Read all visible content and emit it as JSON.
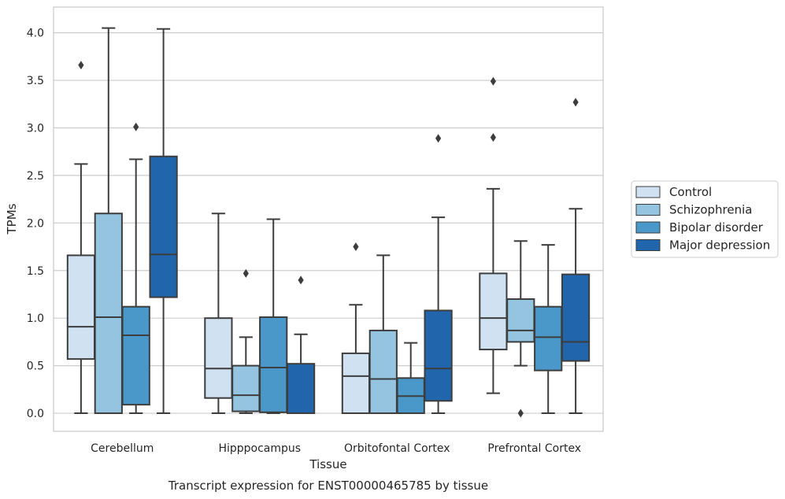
{
  "chart_data": {
    "type": "box",
    "caption": "Transcript expression for ENST00000465785 by tissue",
    "xlabel": "Tissue",
    "ylabel": "TPMs",
    "ylim": [
      -0.19,
      4.27
    ],
    "yticks": [
      0.0,
      0.5,
      1.0,
      1.5,
      2.0,
      2.5,
      3.0,
      3.5,
      4.0
    ],
    "ytick_labels": [
      "0.0",
      "0.5",
      "1.0",
      "1.5",
      "2.0",
      "2.5",
      "3.0",
      "3.5",
      "4.0"
    ],
    "grid": "horizontal",
    "legend_position": "right",
    "categories": [
      "Cerebellum",
      "Hipppocampus",
      "Orbitofontal Cortex",
      "Prefrontal Cortex"
    ],
    "series": [
      {
        "name": "Control",
        "color": "#d0e1f2",
        "boxes": [
          {
            "whislo": 0.0,
            "q1": 0.57,
            "med": 0.91,
            "q3": 1.66,
            "whishi": 2.62,
            "fliers": [
              3.66
            ]
          },
          {
            "whislo": 0.0,
            "q1": 0.16,
            "med": 0.47,
            "q3": 1.0,
            "whishi": 2.1,
            "fliers": []
          },
          {
            "whislo": 0.0,
            "q1": 0.0,
            "med": 0.39,
            "q3": 0.63,
            "whishi": 1.14,
            "fliers": [
              1.75
            ]
          },
          {
            "whislo": 0.21,
            "q1": 0.67,
            "med": 1.0,
            "q3": 1.47,
            "whishi": 2.36,
            "fliers": [
              2.9,
              3.49
            ]
          }
        ]
      },
      {
        "name": "Schizophrenia",
        "color": "#94c4df",
        "boxes": [
          {
            "whislo": 0.0,
            "q1": 0.0,
            "med": 1.01,
            "q3": 2.1,
            "whishi": 4.05,
            "fliers": []
          },
          {
            "whislo": 0.0,
            "q1": 0.02,
            "med": 0.19,
            "q3": 0.5,
            "whishi": 0.8,
            "fliers": [
              1.47
            ]
          },
          {
            "whislo": 0.0,
            "q1": 0.0,
            "med": 0.36,
            "q3": 0.87,
            "whishi": 1.66,
            "fliers": []
          },
          {
            "whislo": 0.5,
            "q1": 0.75,
            "med": 0.87,
            "q3": 1.2,
            "whishi": 1.81,
            "fliers": [
              0.0
            ]
          }
        ]
      },
      {
        "name": "Bipolar disorder",
        "color": "#4a98c9",
        "boxes": [
          {
            "whislo": 0.0,
            "q1": 0.09,
            "med": 0.82,
            "q3": 1.12,
            "whishi": 2.67,
            "fliers": [
              3.01
            ]
          },
          {
            "whislo": 0.0,
            "q1": 0.01,
            "med": 0.48,
            "q3": 1.01,
            "whishi": 2.04,
            "fliers": []
          },
          {
            "whislo": 0.0,
            "q1": 0.0,
            "med": 0.18,
            "q3": 0.37,
            "whishi": 0.74,
            "fliers": []
          },
          {
            "whislo": 0.0,
            "q1": 0.45,
            "med": 0.8,
            "q3": 1.12,
            "whishi": 1.77,
            "fliers": []
          }
        ]
      },
      {
        "name": "Major depression",
        "color": "#2166ac",
        "boxes": [
          {
            "whislo": 0.0,
            "q1": 1.22,
            "med": 1.67,
            "q3": 2.7,
            "whishi": 4.04,
            "fliers": []
          },
          {
            "whislo": 0.0,
            "q1": 0.0,
            "med": 0.0,
            "q3": 0.52,
            "whishi": 0.83,
            "fliers": [
              1.4
            ]
          },
          {
            "whislo": 0.0,
            "q1": 0.13,
            "med": 0.47,
            "q3": 1.08,
            "whishi": 2.06,
            "fliers": [
              2.89
            ]
          },
          {
            "whislo": 0.0,
            "q1": 0.55,
            "med": 0.75,
            "q3": 1.46,
            "whishi": 2.15,
            "fliers": [
              3.27
            ]
          }
        ]
      }
    ]
  }
}
